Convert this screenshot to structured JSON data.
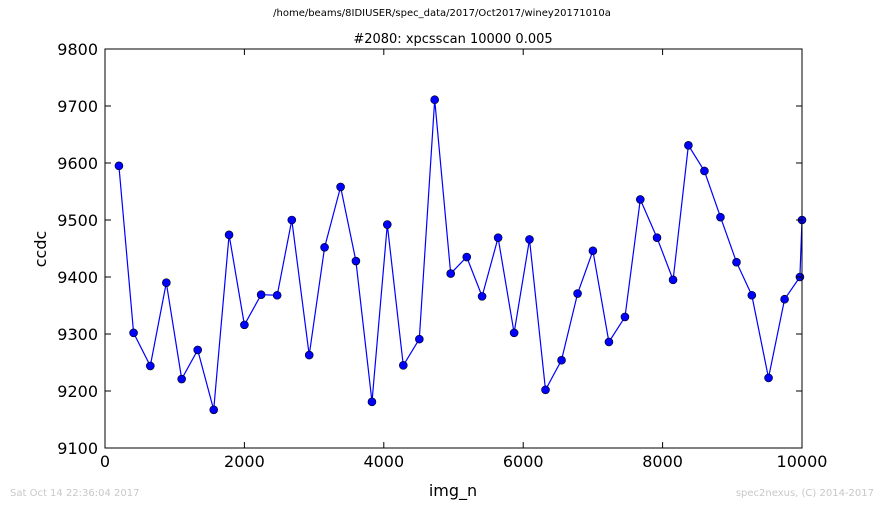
{
  "figure": {
    "suptitle": "/home/beams/8IDIUSER/spec_data/2017/Oct2017/winey20171010a",
    "footer_left": "Sat Oct 14 22:36:04 2017",
    "footer_right": "spec2nexus, (C) 2014-2017"
  },
  "chart_data": {
    "type": "line",
    "title": "#2080: xpcsscan 10000 0.005",
    "xlabel": "img_n",
    "ylabel": "ccdc",
    "xlim": [
      0,
      10000
    ],
    "ylim": [
      9100,
      9800
    ],
    "xticks": [
      0,
      2000,
      4000,
      6000,
      8000,
      10000
    ],
    "yticks": [
      9100,
      9200,
      9300,
      9400,
      9500,
      9600,
      9700,
      9800
    ],
    "grid": false,
    "line_color": "#0000ff",
    "marker": "circle",
    "x": [
      200,
      410,
      650,
      880,
      1100,
      1330,
      1560,
      1780,
      2000,
      2240,
      2470,
      2680,
      2930,
      3150,
      3380,
      3600,
      3830,
      4050,
      4280,
      4510,
      4730,
      4960,
      5190,
      5410,
      5640,
      5870,
      6090,
      6320,
      6550,
      6780,
      7000,
      7230,
      7460,
      7680,
      7920,
      8150,
      8370,
      8600,
      8830,
      9060,
      9280,
      9520,
      9750,
      9970,
      10000
    ],
    "y": [
      9595,
      9302,
      9244,
      9390,
      9221,
      9272,
      9167,
      9474,
      9316,
      9369,
      9368,
      9500,
      9263,
      9452,
      9558,
      9428,
      9181,
      9492,
      9245,
      9291,
      9711,
      9406,
      9435,
      9366,
      9469,
      9302,
      9466,
      9202,
      9254,
      9371,
      9446,
      9286,
      9330,
      9536,
      9469,
      9395,
      9631,
      9586,
      9505,
      9426,
      9368,
      9223,
      9361,
      9400,
      9500
    ]
  }
}
